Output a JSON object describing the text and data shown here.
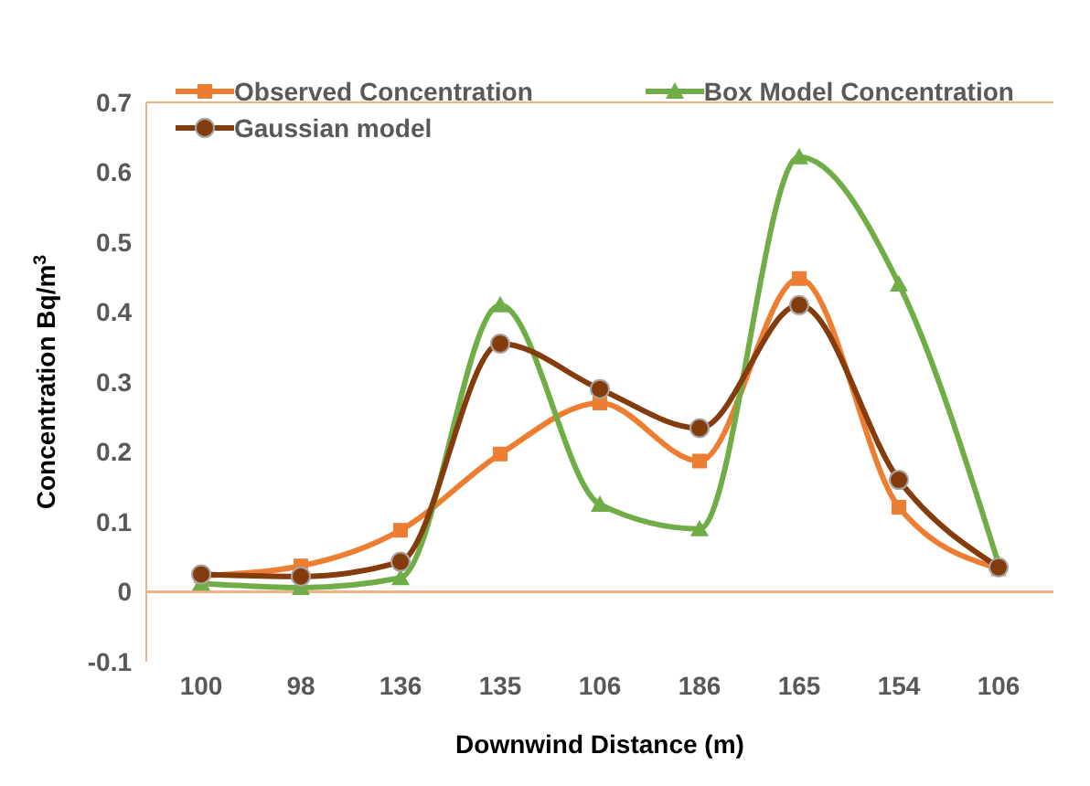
{
  "chart_data": {
    "type": "line",
    "xlabel": "Downwind Distance (m)",
    "ylabel": "Concentration Bq/m$^{3}$",
    "categories": [
      "100",
      "98",
      "136",
      "135",
      "106",
      "186",
      "165",
      "154",
      "106"
    ],
    "series": [
      {
        "name": "Observed Concentration",
        "color": "#ed7d31",
        "marker": "square",
        "values": [
          0.023,
          0.037,
          0.088,
          0.197,
          0.27,
          0.187,
          0.448,
          0.121,
          0.033
        ]
      },
      {
        "name": "Box Model Concentration",
        "color": "#70ad47",
        "marker": "triangle",
        "values": [
          0.012,
          0.006,
          0.02,
          0.41,
          0.125,
          0.09,
          0.622,
          0.44,
          0.04
        ]
      },
      {
        "name": "Gaussian model",
        "color": "#843c0c",
        "marker": "circle",
        "values": [
          0.025,
          0.022,
          0.043,
          0.355,
          0.29,
          0.234,
          0.41,
          0.16,
          0.035
        ]
      }
    ],
    "ylim": [
      -0.1,
      0.7
    ],
    "yticks": [
      -0.1,
      0,
      0.1,
      0.2,
      0.3,
      0.4,
      0.5,
      0.6,
      0.7
    ],
    "ref_lines": [
      {
        "axis": "y",
        "value": 0,
        "color": "#f4b183"
      }
    ],
    "grid": false,
    "legend": "top",
    "line_style": "solid"
  }
}
